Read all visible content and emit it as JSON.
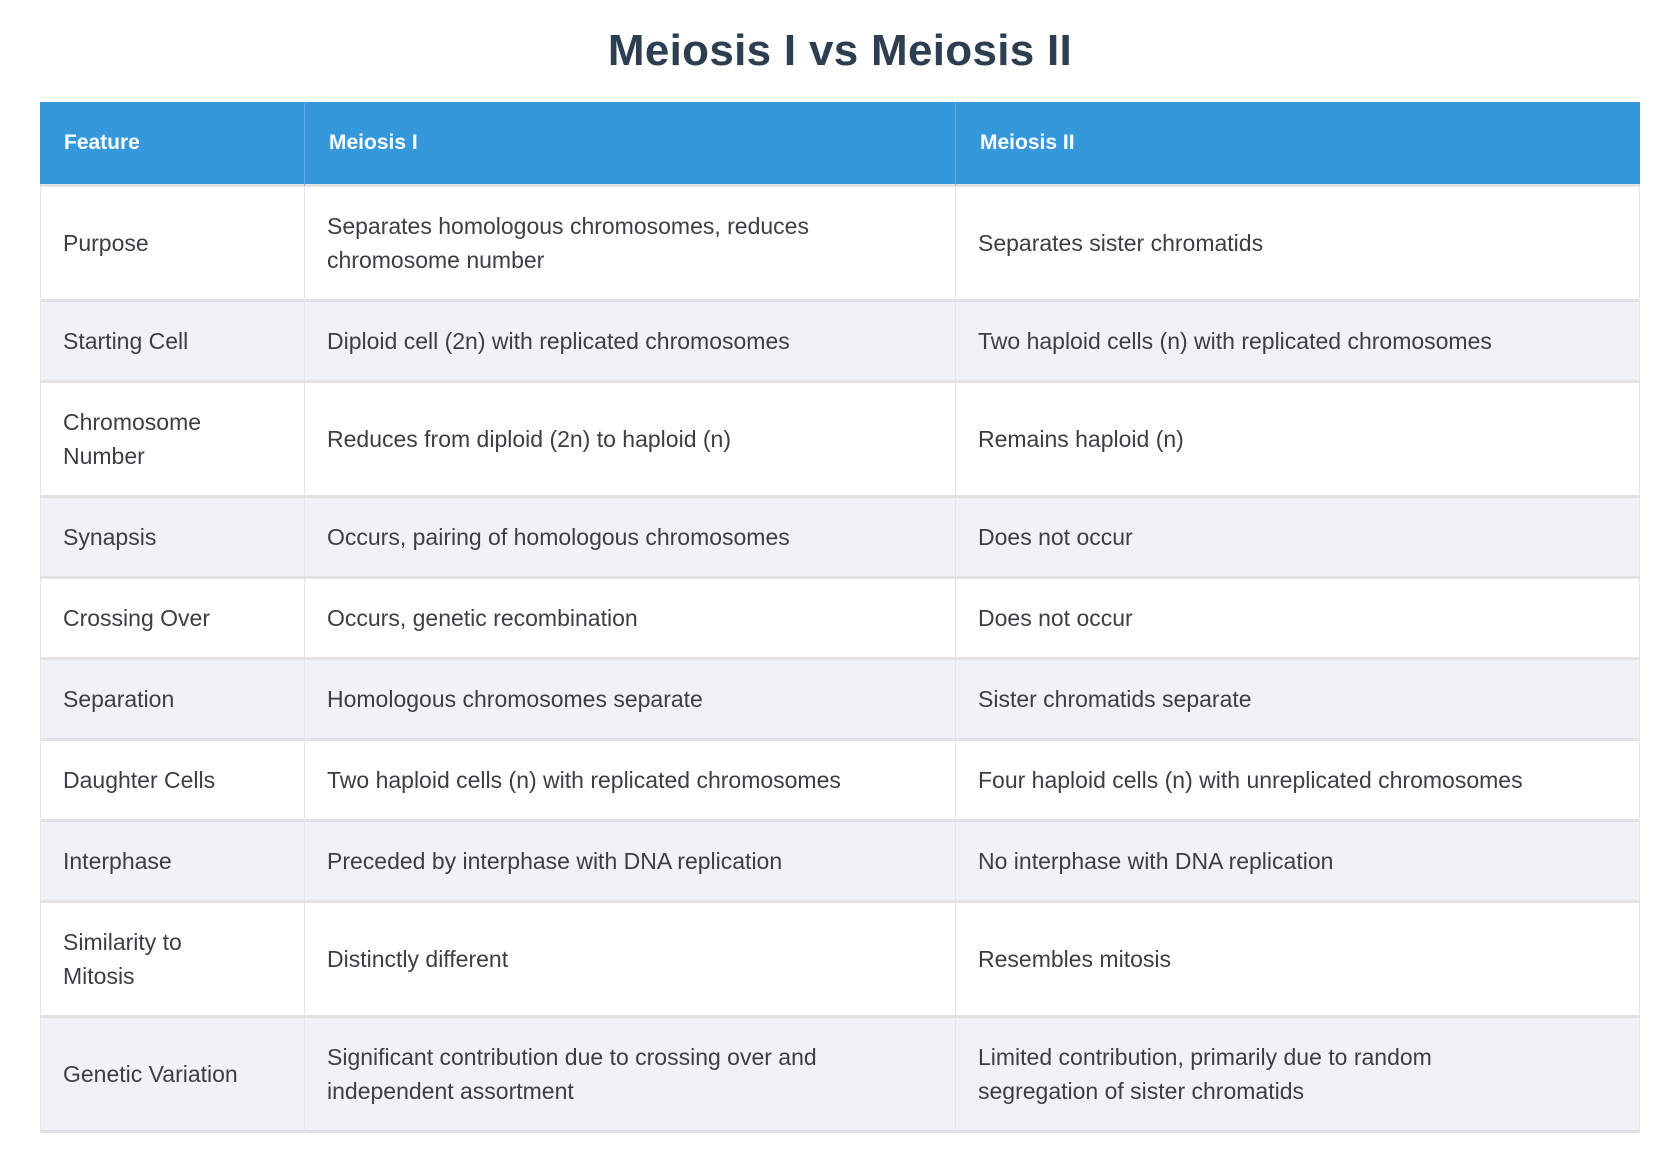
{
  "title": "Meiosis I vs Meiosis II",
  "colors": {
    "header_bg": "#3498db",
    "header_text": "#ffffff",
    "title_text": "#2c3e50",
    "alt_row_bg": "#eff2f7",
    "body_text": "#3b3e42",
    "row_divider": "#e2e2e2",
    "cell_border": "#e3e6ea"
  },
  "table": {
    "headers": [
      "Feature",
      "Meiosis I",
      "Meiosis II"
    ],
    "rows": [
      {
        "feature": "Purpose",
        "meiosis1": "Separates homologous chromosomes, reduces chromosome number",
        "meiosis2": "Separates sister chromatids"
      },
      {
        "feature": "Starting Cell",
        "meiosis1": "Diploid cell (2n) with replicated chromosomes",
        "meiosis2": "Two haploid cells (n) with replicated chromosomes"
      },
      {
        "feature": "Chromosome Number",
        "meiosis1": "Reduces from diploid (2n) to haploid (n)",
        "meiosis2": "Remains haploid (n)"
      },
      {
        "feature": "Synapsis",
        "meiosis1": "Occurs, pairing of homologous chromosomes",
        "meiosis2": "Does not occur"
      },
      {
        "feature": "Crossing Over",
        "meiosis1": "Occurs, genetic recombination",
        "meiosis2": "Does not occur"
      },
      {
        "feature": "Separation",
        "meiosis1": "Homologous chromosomes separate",
        "meiosis2": "Sister chromatids separate"
      },
      {
        "feature": "Daughter Cells",
        "meiosis1": "Two haploid cells (n) with replicated chromosomes",
        "meiosis2": "Four haploid cells (n) with unreplicated chromosomes"
      },
      {
        "feature": "Interphase",
        "meiosis1": "Preceded by interphase with DNA replication",
        "meiosis2": "No interphase with DNA replication"
      },
      {
        "feature": "Similarity to Mitosis",
        "meiosis1": "Distinctly different",
        "meiosis2": "Resembles mitosis"
      },
      {
        "feature": "Genetic Variation",
        "meiosis1": "Significant contribution due to crossing over and independent assortment",
        "meiosis2": "Limited contribution, primarily due to random segregation of sister chromatids"
      }
    ]
  }
}
